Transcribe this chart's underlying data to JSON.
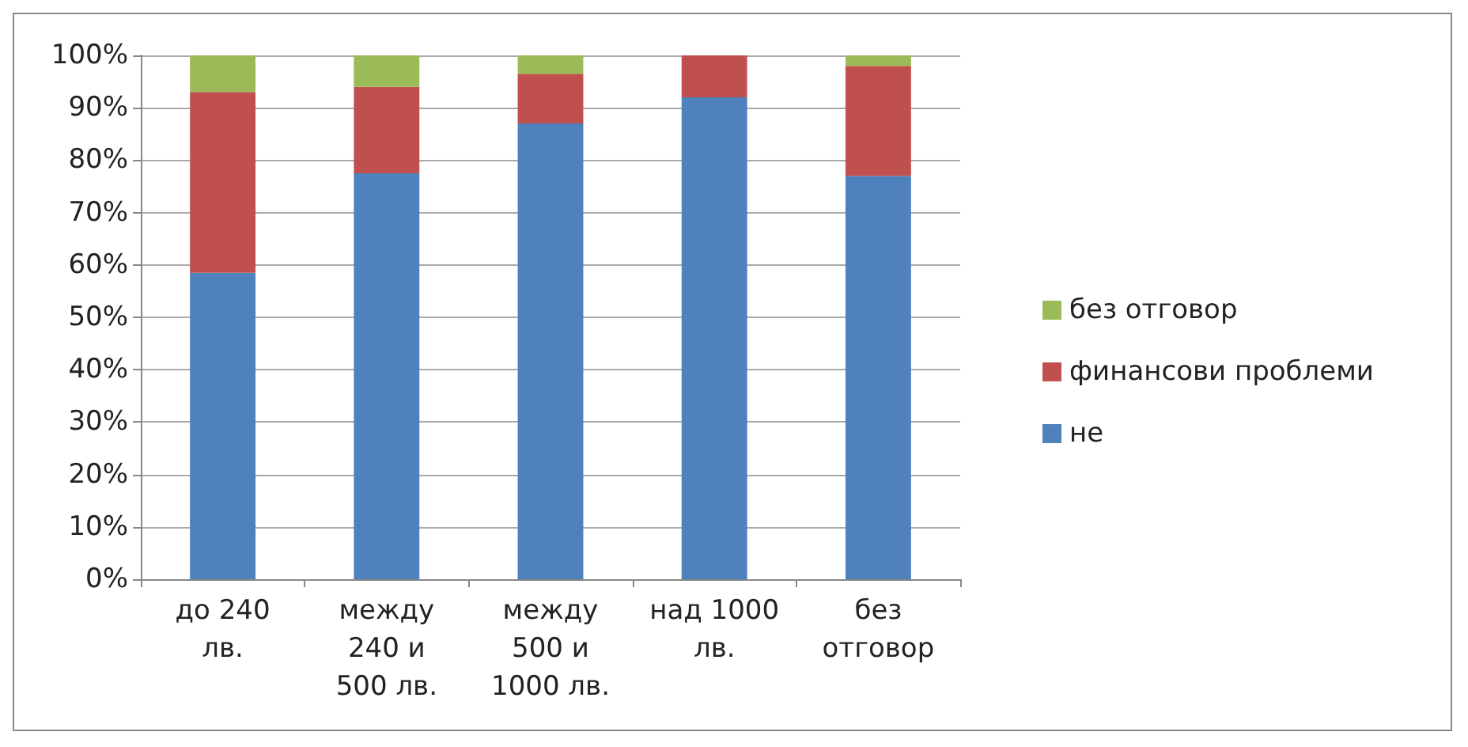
{
  "chart_data": {
    "type": "bar",
    "stacked": true,
    "categories": [
      "до 240 лв.",
      "между 240 и 500 лв.",
      "между 500 и 1000 лв.",
      "над 1000 лв.",
      "без отговор"
    ],
    "series": [
      {
        "name": "не",
        "color": "#4f81bd",
        "values": [
          58.5,
          77.5,
          87,
          92,
          77
        ]
      },
      {
        "name": "финансови проблеми",
        "color": "#c0504d",
        "values": [
          34.5,
          16.5,
          9.5,
          8,
          21
        ]
      },
      {
        "name": "без отговор",
        "color": "#9bbb59",
        "values": [
          7,
          6,
          3.5,
          0,
          2
        ]
      }
    ],
    "ylim": [
      0,
      100
    ],
    "yticks": [
      {
        "value": 0,
        "label": "0%"
      },
      {
        "value": 10,
        "label": "10%"
      },
      {
        "value": 20,
        "label": "20%"
      },
      {
        "value": 30,
        "label": "30%"
      },
      {
        "value": 40,
        "label": "40%"
      },
      {
        "value": 50,
        "label": "50%"
      },
      {
        "value": 60,
        "label": "60%"
      },
      {
        "value": 70,
        "label": "70%"
      },
      {
        "value": 80,
        "label": "80%"
      },
      {
        "value": 90,
        "label": "90%"
      },
      {
        "value": 100,
        "label": "100%"
      }
    ],
    "grid": "y",
    "legend": "right"
  }
}
